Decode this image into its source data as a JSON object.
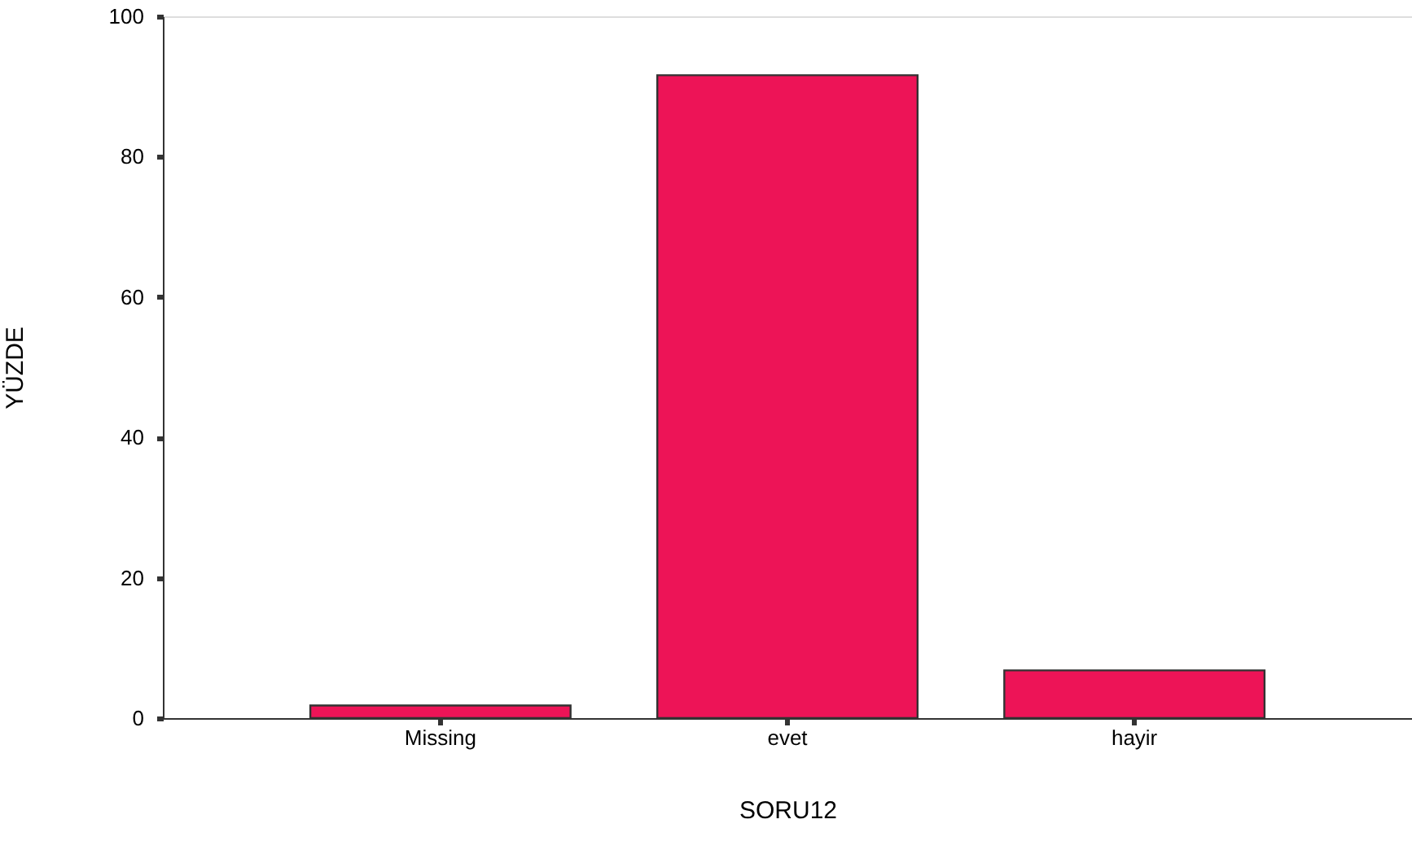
{
  "chart_data": {
    "type": "bar",
    "xlabel": "SORU12",
    "ylabel": "YÜZDE",
    "categories": [
      "Missing",
      "evet",
      "hayir"
    ],
    "values": [
      1.8,
      91.6,
      6.8
    ],
    "color": "#ed1457",
    "ylim": [
      0,
      100
    ],
    "yticks": [
      0,
      20,
      40,
      60,
      80,
      100
    ],
    "grid": false
  }
}
